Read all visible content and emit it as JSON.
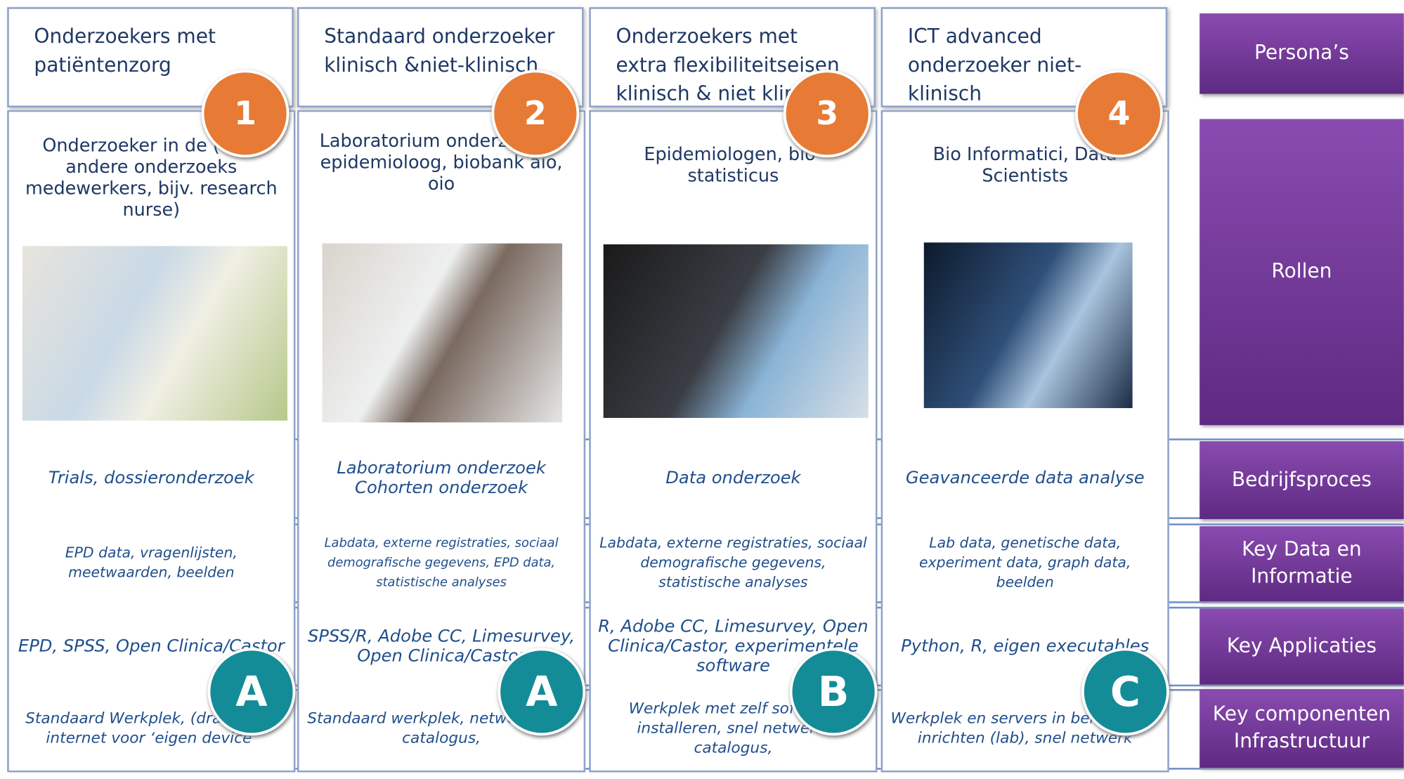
{
  "row_labels": [
    "Persona’s",
    "Rollen",
    "Bedrijfsproces",
    "Key Data en Informatie",
    "Key  Applicaties",
    "Key componenten Infrastructuur"
  ],
  "columns": [
    {
      "number": "1",
      "persona": "Onderzoekers met patiëntenzorg",
      "role": "Onderzoeker in de (arts, andere onderzoeks medewerkers, bijv. research nurse)",
      "process": "Trials, dossieronderzoek",
      "data": "EPD data, vragenlijsten, meetwaarden, beelden",
      "applications": "EPD, SPSS, Open Clinica/Castor",
      "infrastructure": "Standaard Werkplek, (draadloos) internet voor ‘eigen device’",
      "letter": "A"
    },
    {
      "number": "2",
      "persona": "Standaard onderzoeker klinisch &niet-klinisch",
      "role": "Laboratorium onderzoeker, epidemioloog, biobank aio, oio",
      "process": "Laboratorium onderzoek Cohorten onderzoek",
      "data": "Labdata, externe registraties, sociaal demografische gegevens, EPD data, statistische analyses",
      "applications": "SPSS/R, Adobe CC, Limesurvey, Open Clinica/Castor",
      "infrastructure": "Standaard werkplek, netwerk, data catalogus,",
      "letter": "A"
    },
    {
      "number": "3",
      "persona": "Onderzoekers met extra flexibiliteitseisen klinisch & niet klinisch",
      "role": "Epidemiologen, bio- statisticus",
      "process": "Data onderzoek",
      "data": "Labdata, externe registraties, sociaal demografische gegevens, statistische analyses",
      "applications": "R, Adobe CC, Limesurvey, Open Clinica/Castor, experimentele software",
      "infrastructure": "Werkplek met zelf software installeren, snel netwerk, catalogus,",
      "letter": "B"
    },
    {
      "number": "4",
      "persona": "ICT advanced onderzoeker niet-klinisch",
      "role": "Bio Informatici, Data Scientists",
      "process": "Geavanceerde data analyse",
      "data": "Lab data, genetische data, experiment data, graph data, beelden",
      "applications": "Python, R, eigen executables",
      "infrastructure": "Werkplek en servers in beheer, zelf inrichten (lab), snel netwerk",
      "letter": "C"
    }
  ]
}
